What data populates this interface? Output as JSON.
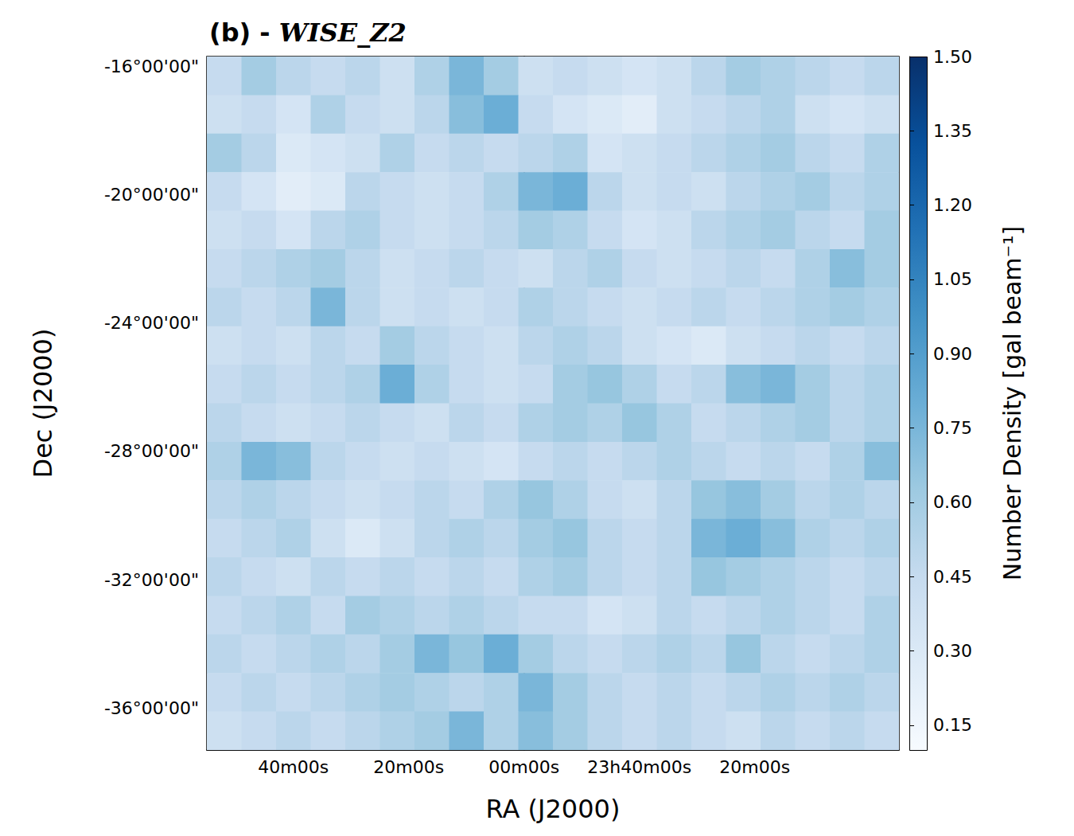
{
  "chart_data": {
    "type": "heatmap",
    "title": "(b) - WISE_Z2",
    "xlabel": "RA (J2000)",
    "ylabel": "Dec (J2000)",
    "colorbar_label": "Number Density [gal beam⁻¹]",
    "xlim": [
      55,
      -65
    ],
    "ylim": [
      -37.3,
      -15.7
    ],
    "xticks": [
      {
        "value": 40,
        "label": "40m00s"
      },
      {
        "value": 20,
        "label": "20m00s"
      },
      {
        "value": 0,
        "label": "00m00s"
      },
      {
        "value": -20,
        "label": "23h40m00s"
      },
      {
        "value": -40,
        "label": "20m00s"
      }
    ],
    "yticks": [
      {
        "value": -16,
        "label": "-16°00'00\""
      },
      {
        "value": -20,
        "label": "-20°00'00\""
      },
      {
        "value": -24,
        "label": "-24°00'00\""
      },
      {
        "value": -28,
        "label": "-28°00'00\""
      },
      {
        "value": -32,
        "label": "-32°00'00\""
      },
      {
        "value": -36,
        "label": "-36°00'00\""
      }
    ],
    "color_range": [
      0.1,
      1.5
    ],
    "color_ticks": [
      0.15,
      {
        "value": 0.3,
        "label": "0.30"
      },
      0.45,
      {
        "value": 0.6,
        "label": "0.60"
      },
      0.75,
      {
        "value": 0.9,
        "label": "0.90"
      },
      1.05,
      {
        "value": 1.2,
        "label": "1.20"
      },
      1.35,
      {
        "value": 1.5,
        "label": "1.50"
      }
    ],
    "grid": false,
    "x": [
      52,
      46,
      40,
      34,
      28,
      22,
      16,
      10,
      4,
      -2,
      -8,
      -14,
      -20,
      -26,
      -32,
      -38,
      -44,
      -50,
      -56,
      -62
    ],
    "y": [
      -16.3,
      -17.5,
      -18.7,
      -19.9,
      -21.1,
      -22.3,
      -23.5,
      -24.7,
      -25.9,
      -27.1,
      -28.3,
      -29.5,
      -30.7,
      -31.9,
      -33.1,
      -34.3,
      -35.5,
      -36.7
    ],
    "cells": [
      [
        0.45,
        0.6,
        0.5,
        0.45,
        0.5,
        0.4,
        0.55,
        0.75,
        0.6,
        0.4,
        0.45,
        0.4,
        0.35,
        0.4,
        0.5,
        0.6,
        0.55,
        0.5,
        0.45,
        0.5
      ],
      [
        0.4,
        0.45,
        0.35,
        0.55,
        0.45,
        0.4,
        0.5,
        0.7,
        0.8,
        0.45,
        0.35,
        0.3,
        0.25,
        0.4,
        0.45,
        0.5,
        0.55,
        0.4,
        0.35,
        0.4
      ],
      [
        0.6,
        0.5,
        0.3,
        0.35,
        0.4,
        0.55,
        0.45,
        0.5,
        0.45,
        0.5,
        0.55,
        0.35,
        0.4,
        0.45,
        0.5,
        0.55,
        0.6,
        0.5,
        0.45,
        0.55
      ],
      [
        0.45,
        0.35,
        0.25,
        0.3,
        0.5,
        0.45,
        0.4,
        0.45,
        0.55,
        0.75,
        0.8,
        0.5,
        0.4,
        0.45,
        0.4,
        0.5,
        0.55,
        0.6,
        0.5,
        0.55
      ],
      [
        0.4,
        0.45,
        0.35,
        0.5,
        0.55,
        0.45,
        0.4,
        0.45,
        0.5,
        0.6,
        0.55,
        0.45,
        0.35,
        0.4,
        0.5,
        0.55,
        0.6,
        0.5,
        0.45,
        0.6
      ],
      [
        0.45,
        0.5,
        0.55,
        0.6,
        0.5,
        0.4,
        0.45,
        0.5,
        0.45,
        0.4,
        0.5,
        0.55,
        0.45,
        0.4,
        0.45,
        0.5,
        0.45,
        0.55,
        0.7,
        0.6
      ],
      [
        0.5,
        0.45,
        0.5,
        0.75,
        0.5,
        0.4,
        0.45,
        0.4,
        0.45,
        0.55,
        0.5,
        0.45,
        0.4,
        0.45,
        0.5,
        0.45,
        0.5,
        0.55,
        0.6,
        0.55
      ],
      [
        0.4,
        0.45,
        0.4,
        0.5,
        0.45,
        0.6,
        0.5,
        0.45,
        0.4,
        0.5,
        0.55,
        0.5,
        0.4,
        0.35,
        0.3,
        0.4,
        0.45,
        0.5,
        0.45,
        0.5
      ],
      [
        0.45,
        0.5,
        0.45,
        0.5,
        0.55,
        0.8,
        0.55,
        0.45,
        0.4,
        0.45,
        0.6,
        0.65,
        0.55,
        0.45,
        0.5,
        0.7,
        0.75,
        0.6,
        0.5,
        0.55
      ],
      [
        0.5,
        0.45,
        0.4,
        0.45,
        0.5,
        0.45,
        0.4,
        0.5,
        0.45,
        0.55,
        0.6,
        0.55,
        0.65,
        0.55,
        0.45,
        0.5,
        0.55,
        0.6,
        0.5,
        0.55
      ],
      [
        0.55,
        0.75,
        0.7,
        0.5,
        0.45,
        0.4,
        0.45,
        0.4,
        0.35,
        0.45,
        0.5,
        0.45,
        0.5,
        0.55,
        0.5,
        0.45,
        0.5,
        0.45,
        0.55,
        0.7
      ],
      [
        0.5,
        0.55,
        0.5,
        0.45,
        0.4,
        0.45,
        0.5,
        0.45,
        0.55,
        0.65,
        0.55,
        0.45,
        0.4,
        0.5,
        0.65,
        0.7,
        0.6,
        0.5,
        0.55,
        0.5
      ],
      [
        0.45,
        0.5,
        0.55,
        0.4,
        0.3,
        0.4,
        0.5,
        0.55,
        0.5,
        0.6,
        0.65,
        0.5,
        0.45,
        0.5,
        0.75,
        0.8,
        0.7,
        0.55,
        0.5,
        0.55
      ],
      [
        0.5,
        0.45,
        0.4,
        0.5,
        0.45,
        0.5,
        0.45,
        0.5,
        0.45,
        0.55,
        0.6,
        0.5,
        0.45,
        0.5,
        0.65,
        0.6,
        0.55,
        0.5,
        0.45,
        0.5
      ],
      [
        0.45,
        0.5,
        0.55,
        0.45,
        0.6,
        0.55,
        0.5,
        0.55,
        0.5,
        0.45,
        0.45,
        0.35,
        0.4,
        0.5,
        0.45,
        0.5,
        0.55,
        0.5,
        0.45,
        0.55
      ],
      [
        0.5,
        0.45,
        0.5,
        0.55,
        0.5,
        0.6,
        0.75,
        0.65,
        0.8,
        0.6,
        0.5,
        0.45,
        0.5,
        0.55,
        0.5,
        0.65,
        0.5,
        0.45,
        0.5,
        0.55
      ],
      [
        0.45,
        0.5,
        0.45,
        0.5,
        0.55,
        0.6,
        0.55,
        0.5,
        0.55,
        0.75,
        0.6,
        0.5,
        0.45,
        0.5,
        0.45,
        0.5,
        0.55,
        0.5,
        0.55,
        0.5
      ],
      [
        0.4,
        0.45,
        0.5,
        0.45,
        0.5,
        0.55,
        0.6,
        0.75,
        0.55,
        0.7,
        0.6,
        0.5,
        0.45,
        0.5,
        0.45,
        0.4,
        0.5,
        0.45,
        0.5,
        0.45
      ]
    ]
  }
}
